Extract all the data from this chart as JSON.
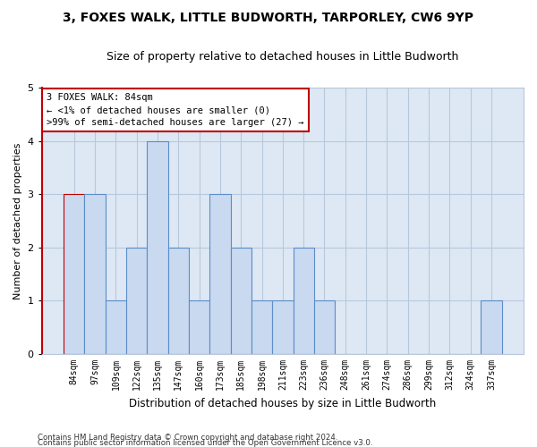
{
  "title": "3, FOXES WALK, LITTLE BUDWORTH, TARPORLEY, CW6 9YP",
  "subtitle": "Size of property relative to detached houses in Little Budworth",
  "xlabel": "Distribution of detached houses by size in Little Budworth",
  "ylabel": "Number of detached properties",
  "footer_line1": "Contains HM Land Registry data © Crown copyright and database right 2024.",
  "footer_line2": "Contains public sector information licensed under the Open Government Licence v3.0.",
  "annotation_title": "3 FOXES WALK: 84sqm",
  "annotation_line1": "← <1% of detached houses are smaller (0)",
  "annotation_line2": ">99% of semi-detached houses are larger (27) →",
  "categories": [
    "84sqm",
    "97sqm",
    "109sqm",
    "122sqm",
    "135sqm",
    "147sqm",
    "160sqm",
    "173sqm",
    "185sqm",
    "198sqm",
    "211sqm",
    "223sqm",
    "236sqm",
    "248sqm",
    "261sqm",
    "274sqm",
    "286sqm",
    "299sqm",
    "312sqm",
    "324sqm",
    "337sqm"
  ],
  "values": [
    3,
    3,
    1,
    2,
    4,
    2,
    1,
    3,
    2,
    1,
    1,
    2,
    1,
    0,
    0,
    0,
    0,
    0,
    0,
    0,
    1
  ],
  "bar_color": "#c9d9f0",
  "bar_edge_color": "#5b8dc8",
  "highlight_index": 0,
  "highlight_bar_edge_color": "#c00000",
  "annotation_box_edge_color": "#c00000",
  "background_color": "#ffffff",
  "grid_color": "#b8c8dc",
  "ylim": [
    0,
    5
  ],
  "yticks": [
    0,
    1,
    2,
    3,
    4,
    5
  ]
}
